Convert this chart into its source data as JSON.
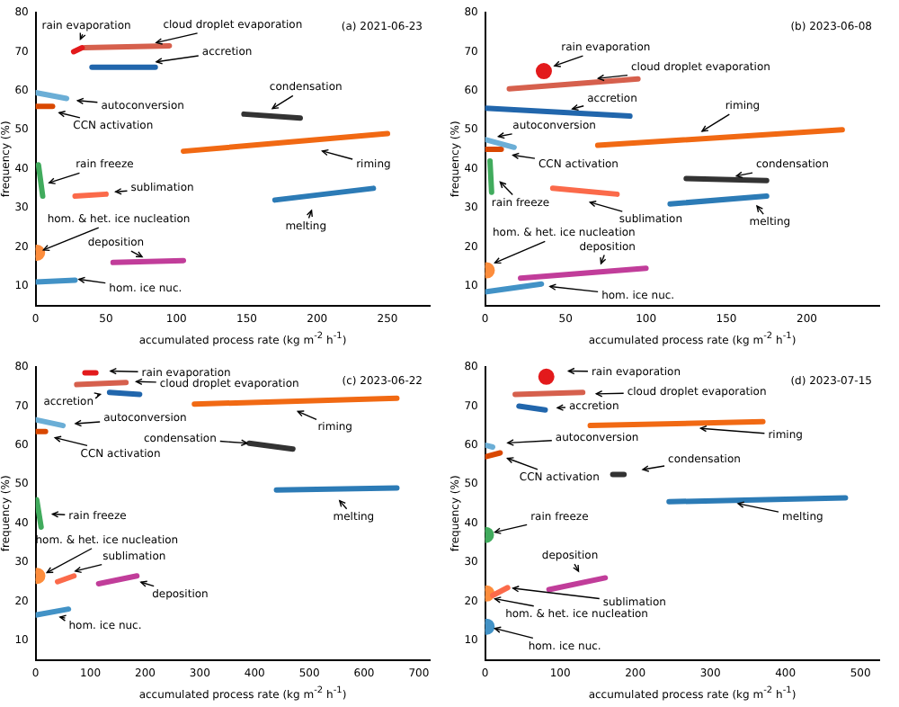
{
  "chart_data": [
    {
      "type": "line",
      "title": "(a) 2021-06-23",
      "xlabel": "accumulated process rate (kg m$^{-2}$ h$^{-1}$)",
      "ylabel": "frequency (%)",
      "xlim": [
        0,
        280
      ],
      "xticks": [
        0,
        50,
        100,
        150,
        200,
        250
      ],
      "ylim": [
        5,
        80
      ],
      "yticks": [
        10,
        20,
        30,
        40,
        50,
        60,
        70,
        80
      ],
      "marker": "none",
      "series": [
        {
          "color": "#e31a1c",
          "x": [
            27,
            33
          ],
          "values": [
            70,
            71
          ]
        },
        {
          "color": "#d6604d",
          "x": [
            35,
            95
          ],
          "values": [
            71,
            71.5
          ]
        },
        {
          "color": "#2166ac",
          "x": [
            40,
            85
          ],
          "values": [
            66,
            66
          ]
        },
        {
          "color": "#6baed6",
          "x": [
            0,
            22
          ],
          "values": [
            59.5,
            58
          ]
        },
        {
          "color": "#d94801",
          "x": [
            0,
            12
          ],
          "values": [
            56,
            56
          ]
        },
        {
          "color": "#41ab5d",
          "x": [
            2,
            5
          ],
          "values": [
            41,
            33
          ]
        },
        {
          "color": "#fb6a4a",
          "x": [
            28,
            50
          ],
          "values": [
            33,
            33.5
          ]
        },
        {
          "type": "scatter",
          "marker": "circle",
          "color": "#fd8d3c",
          "x": [
            1
          ],
          "values": [
            18.5
          ]
        },
        {
          "color": "#c13d9a",
          "x": [
            55,
            105
          ],
          "values": [
            16,
            16.5
          ]
        },
        {
          "color": "#4292c6",
          "x": [
            0,
            28
          ],
          "values": [
            11,
            11.5
          ]
        },
        {
          "color": "#333333",
          "x": [
            148,
            188
          ],
          "values": [
            54,
            53
          ]
        },
        {
          "color": "#f16913",
          "x": [
            105,
            250
          ],
          "values": [
            44.5,
            49
          ]
        },
        {
          "color": "#2c7bb6",
          "x": [
            170,
            240
          ],
          "values": [
            32,
            35
          ]
        }
      ],
      "annotations": [
        "rain evaporation",
        "cloud droplet evaporation",
        "accretion",
        "autoconversion",
        "CCN activation",
        "rain freeze",
        "sublimation",
        "hom. & het. ice nucleation",
        "deposition",
        "hom. ice nuc.",
        "condensation",
        "riming",
        "melting"
      ]
    },
    {
      "type": "line",
      "title": "(b) 2023-06-08",
      "xlabel": "accumulated process rate (kg m$^{-2}$ h$^{-1}$)",
      "ylabel": "frequency (%)",
      "xlim": [
        0,
        245
      ],
      "xticks": [
        0,
        50,
        100,
        150,
        200
      ],
      "ylim": [
        5,
        80
      ],
      "yticks": [
        10,
        20,
        30,
        40,
        50,
        60,
        70,
        80
      ],
      "marker": "none",
      "series": [
        {
          "type": "scatter",
          "marker": "circle",
          "color": "#e31a1c",
          "x": [
            36.5
          ],
          "values": [
            65
          ]
        },
        {
          "color": "#d6604d",
          "x": [
            15,
            95
          ],
          "values": [
            60.5,
            63
          ]
        },
        {
          "color": "#2166ac",
          "x": [
            0,
            90
          ],
          "values": [
            55.5,
            53.5
          ]
        },
        {
          "color": "#6baed6",
          "x": [
            0,
            18
          ],
          "values": [
            47.5,
            45.5
          ]
        },
        {
          "color": "#d94801",
          "x": [
            0,
            10
          ],
          "values": [
            45,
            45
          ]
        },
        {
          "color": "#41ab5d",
          "x": [
            3,
            4
          ],
          "values": [
            42,
            34
          ]
        },
        {
          "color": "#fb6a4a",
          "x": [
            42,
            82
          ],
          "values": [
            35,
            33.5
          ]
        },
        {
          "type": "scatter",
          "marker": "circle",
          "color": "#fd8d3c",
          "x": [
            1
          ],
          "values": [
            14
          ]
        },
        {
          "color": "#c13d9a",
          "x": [
            22,
            100
          ],
          "values": [
            12,
            14.5
          ]
        },
        {
          "color": "#4292c6",
          "x": [
            0,
            35
          ],
          "values": [
            8.5,
            10.5
          ]
        },
        {
          "color": "#333333",
          "x": [
            125,
            175
          ],
          "values": [
            37.5,
            37
          ]
        },
        {
          "color": "#f16913",
          "x": [
            70,
            222
          ],
          "values": [
            46,
            50
          ]
        },
        {
          "color": "#2c7bb6",
          "x": [
            115,
            175
          ],
          "values": [
            31,
            33
          ]
        }
      ],
      "annotations": [
        "rain evaporation",
        "cloud droplet evaporation",
        "accretion",
        "autoconversion",
        "CCN activation",
        "rain freeze",
        "sublimation",
        "hom. & het. ice nucleation",
        "deposition",
        "hom. ice nuc.",
        "condensation",
        "riming",
        "melting"
      ]
    },
    {
      "type": "line",
      "title": "(c) 2023-06-22",
      "xlabel": "accumulated process rate (kg m$^{-2}$ h$^{-1}$)",
      "ylabel": "frequency (%)",
      "xlim": [
        0,
        720
      ],
      "xticks": [
        0,
        100,
        200,
        300,
        400,
        500,
        600,
        700
      ],
      "ylim": [
        5,
        80
      ],
      "yticks": [
        10,
        20,
        30,
        40,
        50,
        60,
        70,
        80
      ],
      "marker": "none",
      "series": [
        {
          "color": "#e31a1c",
          "x": [
            90,
            110
          ],
          "values": [
            78.5,
            78.5
          ]
        },
        {
          "color": "#d6604d",
          "x": [
            75,
            165
          ],
          "values": [
            75.5,
            76
          ]
        },
        {
          "color": "#2166ac",
          "x": [
            135,
            190
          ],
          "values": [
            73.5,
            73
          ]
        },
        {
          "color": "#6baed6",
          "x": [
            0,
            50
          ],
          "values": [
            66.5,
            65
          ]
        },
        {
          "color": "#d94801",
          "x": [
            0,
            18
          ],
          "values": [
            63.5,
            63.5
          ]
        },
        {
          "color": "#41ab5d",
          "x": [
            2,
            10
          ],
          "values": [
            46,
            39
          ]
        },
        {
          "color": "#fb6a4a",
          "x": [
            40,
            70
          ],
          "values": [
            25,
            26.5
          ]
        },
        {
          "type": "scatter",
          "marker": "circle",
          "color": "#fd8d3c",
          "x": [
            3
          ],
          "values": [
            26.5
          ]
        },
        {
          "color": "#c13d9a",
          "x": [
            115,
            185
          ],
          "values": [
            24.5,
            26.5
          ]
        },
        {
          "color": "#4292c6",
          "x": [
            0,
            60
          ],
          "values": [
            16.5,
            18
          ]
        },
        {
          "color": "#333333",
          "x": [
            390,
            470
          ],
          "values": [
            60.5,
            59
          ]
        },
        {
          "color": "#f16913",
          "x": [
            290,
            660
          ],
          "values": [
            70.5,
            72
          ]
        },
        {
          "color": "#2c7bb6",
          "x": [
            440,
            660
          ],
          "values": [
            48.5,
            49
          ]
        }
      ],
      "annotations": [
        "rain evaporation",
        "cloud droplet evaporation",
        "accretion",
        "autoconversion",
        "CCN activation",
        "rain freeze",
        "sublimation",
        "hom. & het. ice nucleation",
        "deposition",
        "hom. ice nuc.",
        "condensation",
        "riming",
        "melting"
      ]
    },
    {
      "type": "line",
      "title": "(d) 2023-07-15",
      "xlabel": "accumulated process rate (kg m$^{-2}$ h$^{-1}$)",
      "ylabel": "frequency (%)",
      "xlim": [
        0,
        525
      ],
      "xticks": [
        0,
        100,
        200,
        300,
        400,
        500
      ],
      "ylim": [
        5,
        80
      ],
      "yticks": [
        10,
        20,
        30,
        40,
        50,
        60,
        70,
        80
      ],
      "marker": "none",
      "series": [
        {
          "type": "scatter",
          "marker": "circle",
          "color": "#e31a1c",
          "x": [
            81.5
          ],
          "values": [
            77.5
          ]
        },
        {
          "color": "#d6604d",
          "x": [
            40,
            130
          ],
          "values": [
            73,
            73.5
          ]
        },
        {
          "color": "#2166ac",
          "x": [
            45,
            80
          ],
          "values": [
            70,
            69
          ]
        },
        {
          "color": "#6baed6",
          "x": [
            0,
            10
          ],
          "values": [
            60,
            59.5
          ]
        },
        {
          "color": "#d94801",
          "x": [
            0,
            20
          ],
          "values": [
            57,
            58
          ]
        },
        {
          "type": "scatter",
          "marker": "circle",
          "color": "#41ab5d",
          "x": [
            1
          ],
          "values": [
            37
          ]
        },
        {
          "color": "#fb6a4a",
          "x": [
            10,
            30
          ],
          "values": [
            21.5,
            23.5
          ]
        },
        {
          "type": "scatter",
          "marker": "circle",
          "color": "#fd8d3c",
          "x": [
            2
          ],
          "values": [
            22
          ]
        },
        {
          "color": "#c13d9a",
          "x": [
            85,
            160
          ],
          "values": [
            23,
            26
          ]
        },
        {
          "type": "scatter",
          "marker": "circle",
          "color": "#4292c6",
          "x": [
            2
          ],
          "values": [
            13.5
          ]
        },
        {
          "color": "#333333",
          "x": [
            170,
            185
          ],
          "values": [
            52.5,
            52.5
          ]
        },
        {
          "color": "#f16913",
          "x": [
            140,
            370
          ],
          "values": [
            65,
            66
          ]
        },
        {
          "color": "#2c7bb6",
          "x": [
            245,
            480
          ],
          "values": [
            45.5,
            46.5
          ]
        }
      ],
      "annotations": [
        "rain evaporation",
        "cloud droplet evaporation",
        "accretion",
        "autoconversion",
        "CCN activation",
        "rain freeze",
        {
          "text": "sublimation",
          "x": 30,
          "y": 23.5
        },
        "hom. & het. ice nucleation",
        "deposition",
        "hom. ice nuc.",
        "condensation",
        "riming",
        "melting"
      ]
    }
  ]
}
